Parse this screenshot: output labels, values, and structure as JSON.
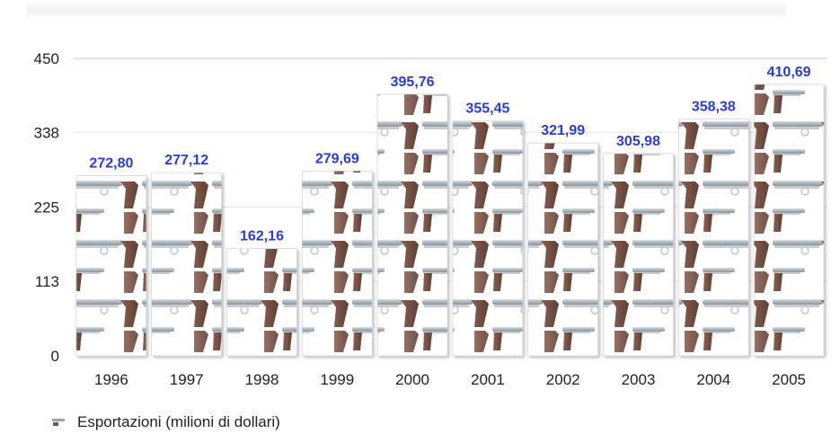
{
  "chart_data": {
    "type": "bar",
    "categories": [
      "1996",
      "1997",
      "1998",
      "1999",
      "2000",
      "2001",
      "2002",
      "2003",
      "2004",
      "2005"
    ],
    "series": [
      {
        "name": "Esportazioni (milioni di dollari)",
        "values": [
          272.8,
          277.12,
          162.16,
          279.69,
          395.76,
          355.45,
          321.99,
          305.98,
          358.38,
          410.69
        ],
        "labels": [
          "272,80",
          "277,12",
          "162,16",
          "279,69",
          "395,76",
          "355,45",
          "321,99",
          "305,98",
          "358,38",
          "410,69"
        ]
      }
    ],
    "yticks": [
      "0",
      "113",
      "225",
      "338",
      "450"
    ],
    "ylim": [
      0,
      450
    ],
    "grid": true,
    "legend_position": "bottom-left",
    "colors": {
      "label": "#2a3bd8",
      "grid": "#e5e5e5",
      "top_grid": "#e3b9b9",
      "gun_metal": "#a9b2bb",
      "gun_grip": "#7b5446"
    }
  }
}
